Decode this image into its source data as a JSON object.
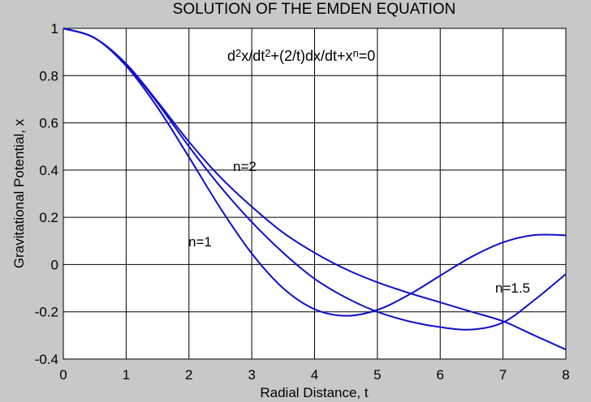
{
  "chart_data": {
    "type": "line",
    "title": "SOLUTION OF THE EMDEN EQUATION",
    "equation_parts": [
      "d",
      "2",
      "x/dt",
      "2",
      "+(2/t)dx/dt+x",
      "n",
      "=0"
    ],
    "x_label": "Radial Distance, t",
    "y_label": "Gravitational Potential, x",
    "x": [
      0,
      0.5,
      1,
      1.5,
      2,
      2.5,
      3,
      3.5,
      4,
      4.5,
      5,
      5.5,
      6,
      6.5,
      7,
      7.5,
      8
    ],
    "series": [
      {
        "name": "n=1",
        "color": "#1010c8",
        "values": [
          1,
          0.959,
          0.841,
          0.665,
          0.455,
          0.239,
          0.047,
          -0.1,
          -0.189,
          -0.217,
          -0.192,
          -0.128,
          -0.047,
          0.033,
          0.094,
          0.125,
          0.124
        ]
      },
      {
        "name": "n=1.5",
        "color": "#1010c8",
        "values": [
          1,
          0.959,
          0.848,
          0.684,
          0.5,
          0.33,
          0.18,
          0.05,
          -0.06,
          -0.14,
          -0.2,
          -0.24,
          -0.265,
          -0.275,
          -0.245,
          -0.15,
          -0.04
        ]
      },
      {
        "name": "n=2",
        "color": "#1010c8",
        "values": [
          1,
          0.959,
          0.85,
          0.69,
          0.52,
          0.37,
          0.245,
          0.135,
          0.05,
          -0.02,
          -0.075,
          -0.12,
          -0.16,
          -0.2,
          -0.24,
          -0.3,
          -0.36
        ]
      }
    ],
    "xlim": [
      0,
      8
    ],
    "xticks": [
      0,
      1,
      2,
      3,
      4,
      5,
      6,
      7,
      8
    ],
    "ylim": [
      -0.4,
      1
    ],
    "yticks": [
      -0.4,
      -0.2,
      0,
      0.2,
      0.4,
      0.6,
      0.8,
      1
    ],
    "grid": true
  }
}
